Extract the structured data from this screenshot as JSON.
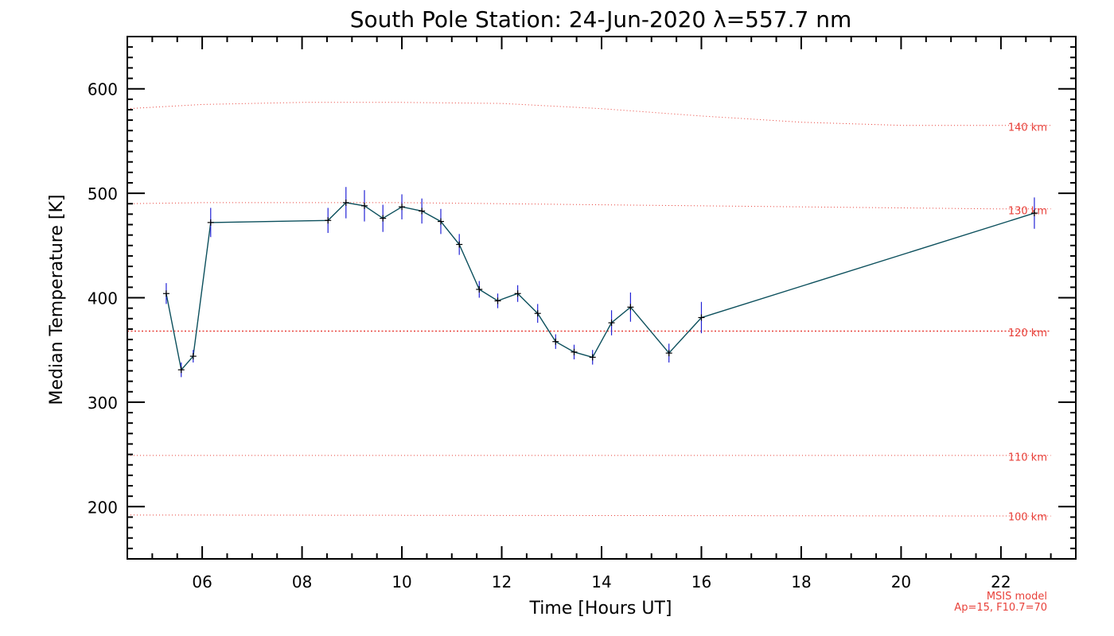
{
  "chart_data": {
    "type": "line",
    "title": "South Pole Station: 24-Jun-2020 λ=557.7 nm",
    "xlabel": "Time [Hours UT]",
    "ylabel": "Median Temperature [K]",
    "xlim": [
      4.5,
      23.5
    ],
    "ylim": [
      150,
      650
    ],
    "x_ticks": [
      6,
      8,
      10,
      12,
      14,
      16,
      18,
      20,
      22
    ],
    "x_tick_labels": [
      "06",
      "08",
      "10",
      "12",
      "14",
      "16",
      "18",
      "20",
      "22"
    ],
    "y_ticks": [
      200,
      300,
      400,
      500,
      600
    ],
    "y_tick_labels": [
      "200",
      "300",
      "400",
      "500",
      "600"
    ],
    "colors": {
      "line": "#0b4f5c",
      "marker": "#000000",
      "error_bar": "#2323d6",
      "model": "#e8413a",
      "axis": "#000000"
    },
    "series": [
      {
        "x": [
          5.28,
          5.58,
          5.82,
          6.17,
          8.52,
          8.88,
          9.25,
          9.62,
          10.0,
          10.4,
          10.78,
          11.15,
          11.55,
          11.92,
          12.32,
          12.72,
          13.08,
          13.45,
          13.82,
          14.2,
          14.58,
          15.35,
          16.0,
          22.67
        ],
        "y": [
          404,
          331,
          344,
          472,
          474,
          491,
          488,
          476,
          487,
          483,
          473,
          451,
          408,
          397,
          404,
          385,
          358,
          348,
          343,
          376,
          391,
          347,
          381,
          481
        ],
        "err": [
          10,
          7,
          6,
          14,
          12,
          15,
          15,
          13,
          12,
          12,
          12,
          10,
          8,
          7,
          8,
          9,
          7,
          7,
          7,
          12,
          14,
          9,
          15,
          15
        ]
      }
    ],
    "model": {
      "note_lines": [
        "MSIS model",
        "Ap=15, F10.7=70"
      ],
      "levels": [
        {
          "label": "140 km",
          "x": [
            4.5,
            6.0,
            8.0,
            10.0,
            12.0,
            14.0,
            16.0,
            18.0,
            20.0,
            22.0,
            23.0
          ],
          "y": [
            581,
            585,
            587,
            587,
            586,
            581,
            574,
            568,
            565,
            565,
            565
          ],
          "label_y": 563
        },
        {
          "label": "130 km",
          "x": [
            4.5,
            6.0,
            8.0,
            10.0,
            12.0,
            14.0,
            16.0,
            18.0,
            20.0,
            22.0,
            23.0
          ],
          "y": [
            490,
            491,
            491,
            491,
            490,
            489,
            488,
            487,
            486,
            485,
            485
          ],
          "label_y": 483
        },
        {
          "label": "120 km",
          "x": [
            4.5,
            23.0
          ],
          "y": [
            368,
            368
          ],
          "label_y": 366
        },
        {
          "label": "110 km",
          "x": [
            4.5,
            23.0
          ],
          "y": [
            249,
            249
          ],
          "label_y": 247
        },
        {
          "label": "100 km",
          "x": [
            4.5,
            23.0
          ],
          "y": [
            192,
            191
          ],
          "label_y": 190
        }
      ]
    }
  }
}
